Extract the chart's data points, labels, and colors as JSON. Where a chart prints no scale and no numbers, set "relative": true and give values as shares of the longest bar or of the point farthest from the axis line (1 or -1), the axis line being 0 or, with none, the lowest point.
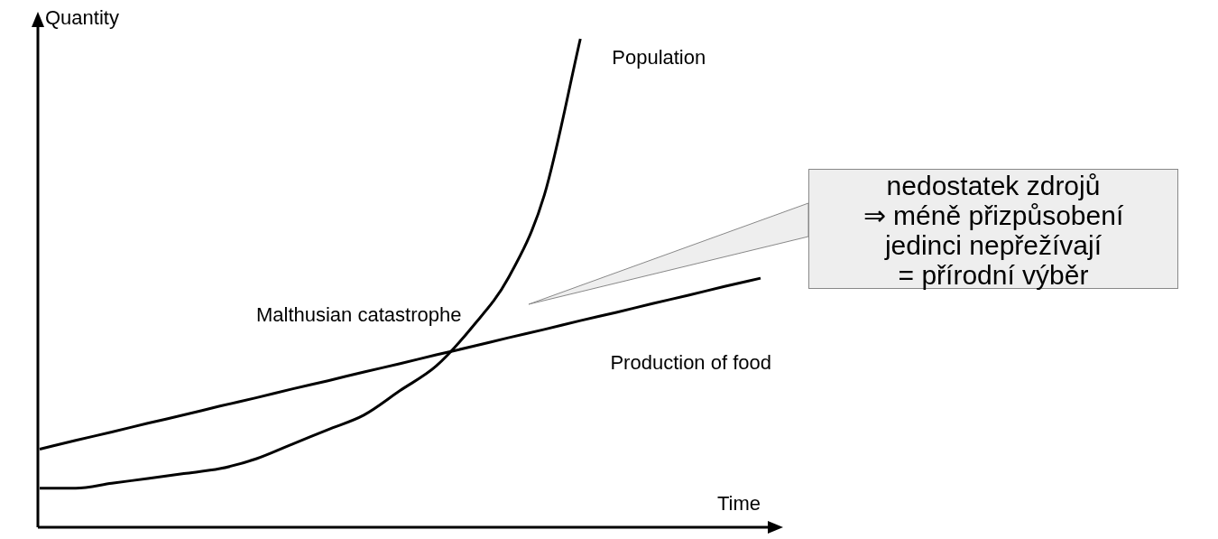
{
  "chart_data": {
    "type": "line",
    "relative": true,
    "xlabel": "Time",
    "ylabel": "Quantity",
    "categories": [
      null,
      null,
      null,
      null,
      null,
      null,
      null,
      null,
      null,
      null,
      null,
      null,
      null,
      null,
      null,
      null,
      null,
      null,
      null,
      null,
      null
    ],
    "series": [
      {
        "name": "Population",
        "color": "#000000",
        "values": [
          0.08,
          0.08,
          0.09,
          0.1,
          0.11,
          0.12,
          0.14,
          0.17,
          0.2,
          0.23,
          0.28,
          0.33,
          0.41,
          0.51,
          0.68,
          1,
          null,
          null,
          null,
          null,
          null
        ]
      },
      {
        "name": "Production of food",
        "color": "#000000",
        "values": [
          0.16,
          0.178,
          0.195,
          0.213,
          0.23,
          0.248,
          0.265,
          0.283,
          0.3,
          0.318,
          0.335,
          0.353,
          0.37,
          0.388,
          0.405,
          0.423,
          0.44,
          0.458,
          0.475,
          0.493,
          0.51
        ]
      }
    ],
    "annotations": [
      "Malthusian catastrophe",
      "nedostatek zdrojů\n⇒ méně přizpůsobení\njedinci nepřežívají\n= přírodní výběr"
    ],
    "marker": "none",
    "line_style": "solid",
    "grid": false,
    "legend": false
  }
}
